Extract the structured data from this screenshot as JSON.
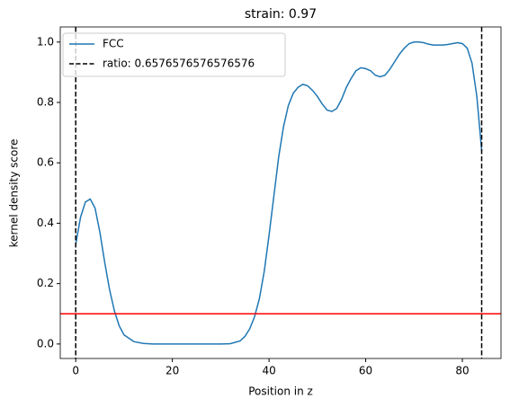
{
  "chart_data": {
    "type": "line",
    "title": "strain: 0.97",
    "x_label": "Position in z",
    "y_label": "kernel density score",
    "x": [
      0,
      1,
      2,
      3,
      4,
      5,
      6,
      7,
      8,
      9,
      10,
      12,
      14,
      16,
      20,
      25,
      30,
      32,
      34,
      35,
      36,
      37,
      38,
      39,
      40,
      41,
      42,
      43,
      44,
      45,
      46,
      47,
      48,
      49,
      50,
      51,
      52,
      53,
      54,
      55,
      56,
      57,
      58,
      59,
      60,
      61,
      62,
      63,
      64,
      65,
      66,
      67,
      68,
      69,
      70,
      71,
      72,
      73,
      74,
      75,
      76,
      77,
      78,
      79,
      80,
      81,
      82,
      83,
      84
    ],
    "series": [
      {
        "name": "FCC",
        "color": "#1f77b4",
        "values": [
          0.33,
          0.42,
          0.47,
          0.48,
          0.45,
          0.37,
          0.27,
          0.18,
          0.11,
          0.06,
          0.03,
          0.008,
          0.002,
          0,
          0,
          0,
          0,
          0.001,
          0.01,
          0.025,
          0.05,
          0.09,
          0.15,
          0.24,
          0.36,
          0.49,
          0.62,
          0.72,
          0.79,
          0.83,
          0.85,
          0.86,
          0.855,
          0.84,
          0.82,
          0.795,
          0.775,
          0.77,
          0.78,
          0.81,
          0.85,
          0.88,
          0.905,
          0.915,
          0.912,
          0.905,
          0.89,
          0.885,
          0.89,
          0.91,
          0.935,
          0.96,
          0.98,
          0.995,
          1.0,
          1.0,
          0.998,
          0.993,
          0.99,
          0.99,
          0.99,
          0.992,
          0.995,
          0.998,
          0.995,
          0.98,
          0.93,
          0.82,
          0.64
        ]
      }
    ],
    "vlines": {
      "name": "ratio: 0.6576576576576576",
      "color": "#000000",
      "values": [
        0,
        84
      ]
    },
    "hline": {
      "color": "#ff0000",
      "values": [
        0.1
      ]
    },
    "xlim": [
      -3.2,
      88
    ],
    "ylim": [
      -0.048,
      1.05
    ],
    "xticks": [
      0,
      20,
      40,
      60,
      80
    ],
    "yticks": [
      {
        "value": 0,
        "label": "0.0"
      },
      0.2,
      0.4,
      0.6,
      0.8,
      {
        "value": 1,
        "label": "1.0"
      }
    ],
    "legend": "upper left"
  }
}
